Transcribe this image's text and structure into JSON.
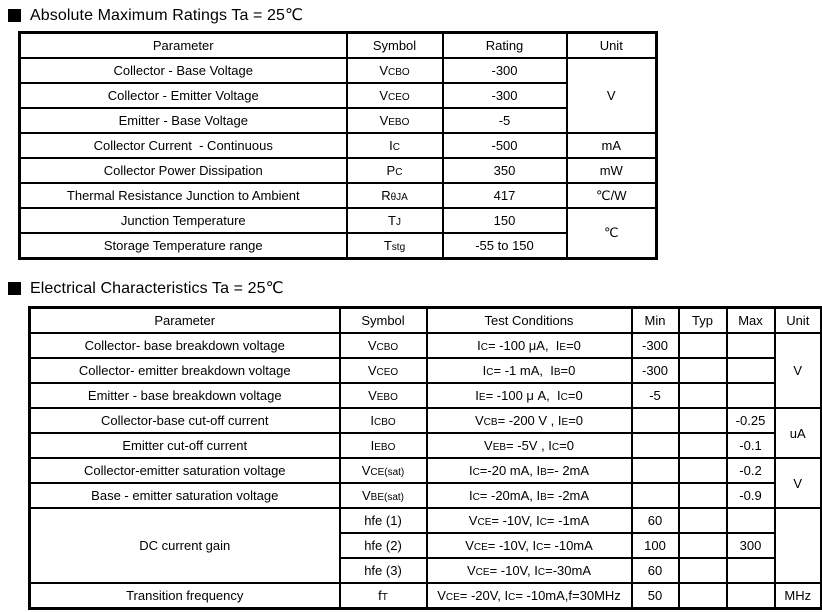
{
  "sections": [
    {
      "title": "Absolute Maximum Ratings Ta = 25℃"
    },
    {
      "title": "Electrical Characteristics Ta = 25℃"
    }
  ],
  "abs_max": {
    "headers": {
      "parameter": "Parameter",
      "symbol": "Symbol",
      "rating": "Rating",
      "unit": "Unit"
    },
    "rows": [
      {
        "param": "Collector - Base Voltage",
        "symbol": "V{CBO}",
        "rating": "-300",
        "unit": "V"
      },
      {
        "param": "Collector - Emitter Voltage",
        "symbol": "V{CEO}",
        "rating": "-300"
      },
      {
        "param": "Emitter - Base Voltage",
        "symbol": "V{EBO}",
        "rating": "-5"
      },
      {
        "param": "Collector Current  - Continuous",
        "symbol": "I{C}",
        "rating": "-500",
        "unit": "mA"
      },
      {
        "param": "Collector Power Dissipation",
        "symbol": "P{C}",
        "rating": "350",
        "unit": "mW"
      },
      {
        "param": "Thermal Resistance Junction to Ambient",
        "symbol": "R{θJA}",
        "rating": "417",
        "unit": "℃/W"
      },
      {
        "param": "Junction Temperature",
        "symbol": "T{J}",
        "rating": "150",
        "unit": "℃"
      },
      {
        "param": "Storage Temperature range",
        "symbol": "T{stg}",
        "rating": "-55 to 150"
      }
    ]
  },
  "elec": {
    "headers": {
      "parameter": "Parameter",
      "symbol": "Symbol",
      "cond": "Test Conditions",
      "min": "Min",
      "typ": "Typ",
      "max": "Max",
      "unit": "Unit"
    },
    "rows": [
      {
        "param": "Collector- base breakdown voltage",
        "symbol": "V{CBO}",
        "cond": "I{C}= -100 μA,  I{E}=0",
        "min": "-300",
        "typ": "",
        "max": "",
        "unit": "V"
      },
      {
        "param": "Collector- emitter breakdown voltage",
        "symbol": "V{CEO}",
        "cond": "I{C}= -1 mA,  I{B}=0",
        "min": "-300",
        "typ": "",
        "max": ""
      },
      {
        "param": "Emitter - base breakdown voltage",
        "symbol": "V{EBO}",
        "cond": "I{E}= -100 μ A,  I{C}=0",
        "min": "-5",
        "typ": "",
        "max": ""
      },
      {
        "param": "Collector-base cut-off current",
        "symbol": "I{CBO}",
        "cond": "V{CB}= -200 V , I{E}=0",
        "min": "",
        "typ": "",
        "max": "-0.25",
        "unit": "uA"
      },
      {
        "param": "Emitter cut-off current",
        "symbol": "I{EBO}",
        "cond": "V{EB}= -5V , I{C}=0",
        "min": "",
        "typ": "",
        "max": "-0.1"
      },
      {
        "param": "Collector-emitter saturation voltage",
        "symbol": "V{CE(sat)}",
        "cond": "I{C}=-20 mA, I{B}=- 2mA",
        "min": "",
        "typ": "",
        "max": "-0.2",
        "unit": "V"
      },
      {
        "param": "Base - emitter saturation voltage",
        "symbol": "V{BE(sat)}",
        "cond": "I{C}= -20mA, I{B}= -2mA",
        "min": "",
        "typ": "",
        "max": "-0.9"
      },
      {
        "param": "DC current gain",
        "symbol": "hfe (1)",
        "cond": "V{CE}= -10V, I{C}= -1mA",
        "min": "60",
        "typ": "",
        "max": "",
        "unit": ""
      },
      {
        "param": "",
        "symbol": "hfe (2)",
        "cond": "V{CE}= -10V, I{C}= -10mA",
        "min": "100",
        "typ": "",
        "max": "300"
      },
      {
        "param": "",
        "symbol": "hfe (3)",
        "cond": "V{CE}= -10V, I{C}=-30mA",
        "min": "60",
        "typ": "",
        "max": ""
      },
      {
        "param": "Transition frequency",
        "symbol": "f{T}",
        "cond": "V{CE}= -20V, I{C}= -10mA,f=30MHz",
        "min": "50",
        "typ": "",
        "max": "",
        "unit": "MHz"
      }
    ]
  }
}
